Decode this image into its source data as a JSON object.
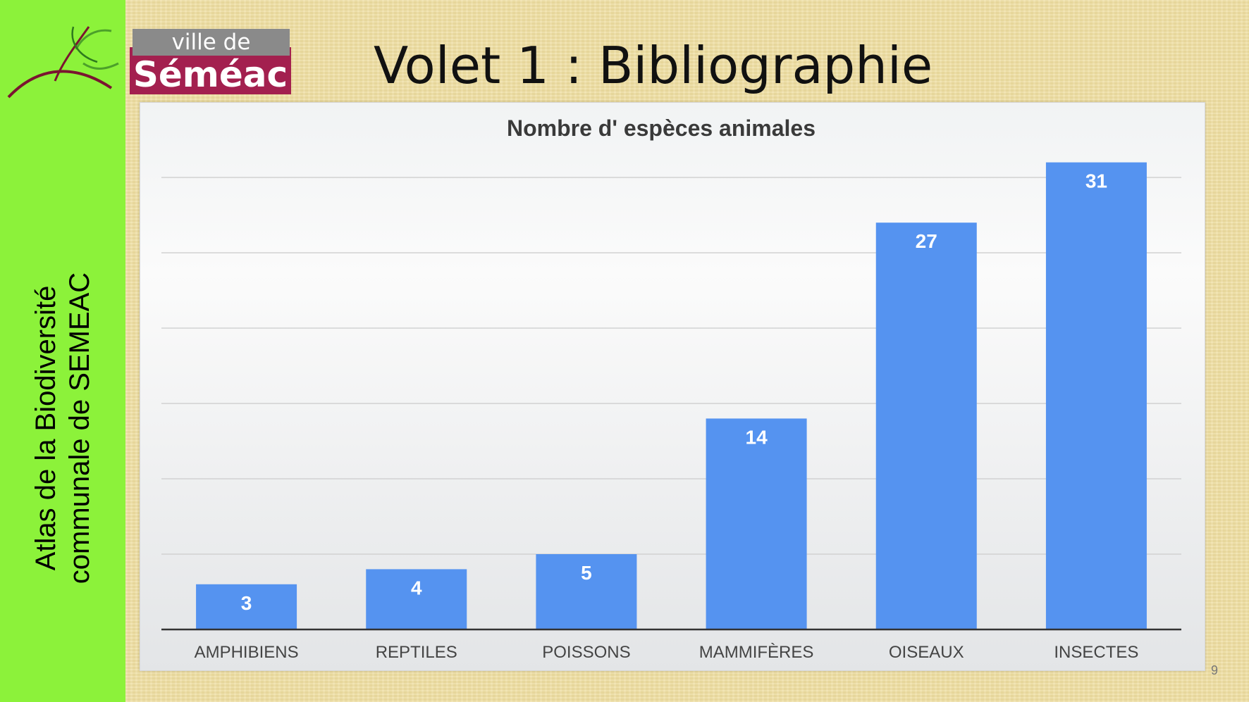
{
  "sidebar": {
    "vertical_text_line1": "Atlas de la Biodiversité",
    "vertical_text_line2": "communale de SEMEAC"
  },
  "brand": {
    "top": "ville de",
    "bottom": "Séméac"
  },
  "slide": {
    "title": "Volet 1 : Bibliographie",
    "page_number": "9"
  },
  "colors": {
    "sidebar": "#8cf23a",
    "bar": "#5593f0",
    "brand_red": "#a3204f",
    "brand_gray": "#8a8a8a"
  },
  "chart_data": {
    "type": "bar",
    "title": "Nombre d' espèces animales",
    "categories": [
      "AMPHIBIENS",
      "REPTILES",
      "POISSONS",
      "MAMMIFÈRES",
      "OISEAUX",
      "INSECTES"
    ],
    "values": [
      3,
      4,
      5,
      14,
      27,
      31
    ],
    "xlabel": "",
    "ylabel": "",
    "ylim": [
      0,
      35
    ],
    "grid": true,
    "data_labels": "inside-top",
    "legend": "none"
  }
}
